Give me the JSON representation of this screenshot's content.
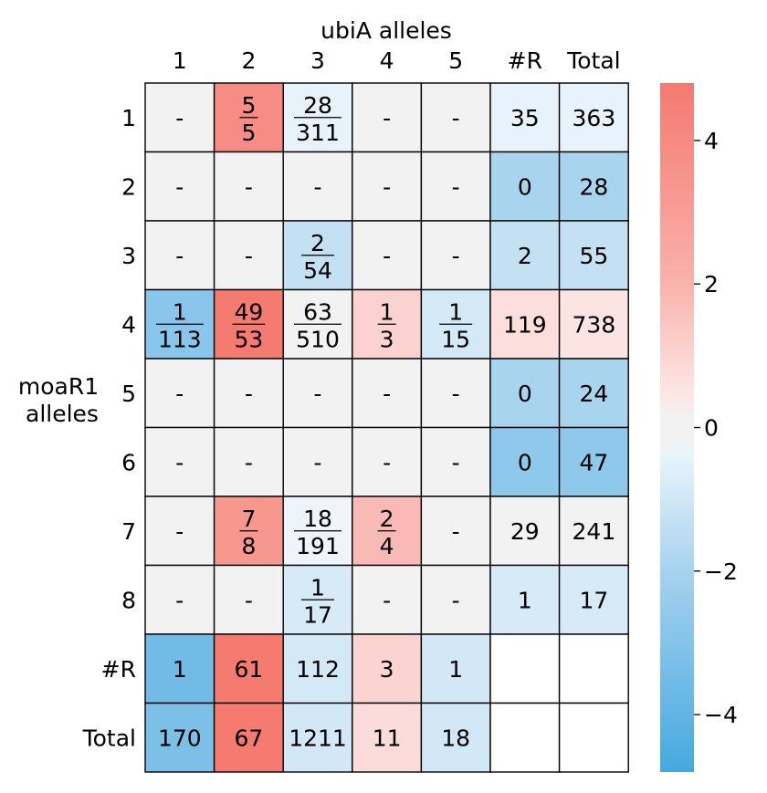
{
  "chart_data": {
    "type": "heatmap",
    "xlabel": "ubiA alleles",
    "ylabel": "moaR1\nalleles",
    "columns": [
      "1",
      "2",
      "3",
      "4",
      "5",
      "#R",
      "Total"
    ],
    "rows": [
      "1",
      "2",
      "3",
      "4",
      "5",
      "6",
      "7",
      "8",
      "#R",
      "Total"
    ],
    "cells": [
      [
        {
          "text": "-",
          "color": "#f2f2f2"
        },
        {
          "num": "5",
          "den": "5",
          "color": "#f68c83"
        },
        {
          "num": "28",
          "den": "311",
          "color": "#e7f2fa"
        },
        {
          "text": "-",
          "color": "#f2f2f2"
        },
        {
          "text": "-",
          "color": "#f2f2f2"
        },
        {
          "text": "35",
          "color": "#e7f2fa"
        },
        {
          "text": "363",
          "color": "#e7f2fa"
        }
      ],
      [
        {
          "text": "-",
          "color": "#f2f2f2"
        },
        {
          "text": "-",
          "color": "#f2f2f2"
        },
        {
          "text": "-",
          "color": "#f2f2f2"
        },
        {
          "text": "-",
          "color": "#f2f2f2"
        },
        {
          "text": "-",
          "color": "#f2f2f2"
        },
        {
          "text": "0",
          "color": "#a9d4ee"
        },
        {
          "text": "28",
          "color": "#a9d4ee"
        }
      ],
      [
        {
          "text": "-",
          "color": "#f2f2f2"
        },
        {
          "text": "-",
          "color": "#f2f2f2"
        },
        {
          "num": "2",
          "den": "54",
          "color": "#c3e1f3"
        },
        {
          "text": "-",
          "color": "#f2f2f2"
        },
        {
          "text": "-",
          "color": "#f2f2f2"
        },
        {
          "text": "2",
          "color": "#c3e1f3"
        },
        {
          "text": "55",
          "color": "#c3e1f3"
        }
      ],
      [
        {
          "num": "1",
          "den": "113",
          "color": "#8ac6eb"
        },
        {
          "num": "49",
          "den": "53",
          "color": "#f57a70"
        },
        {
          "num": "63",
          "den": "510",
          "color": "#f2f2f2"
        },
        {
          "num": "1",
          "den": "3",
          "color": "#fbd2cf"
        },
        {
          "num": "1",
          "den": "15",
          "color": "#d3e9f6"
        },
        {
          "text": "119",
          "color": "#fcdedc"
        },
        {
          "text": "738",
          "color": "#fce4e2"
        }
      ],
      [
        {
          "text": "-",
          "color": "#f2f2f2"
        },
        {
          "text": "-",
          "color": "#f2f2f2"
        },
        {
          "text": "-",
          "color": "#f2f2f2"
        },
        {
          "text": "-",
          "color": "#f2f2f2"
        },
        {
          "text": "-",
          "color": "#f2f2f2"
        },
        {
          "text": "0",
          "color": "#a9d4ee"
        },
        {
          "text": "24",
          "color": "#a9d4ee"
        }
      ],
      [
        {
          "text": "-",
          "color": "#f2f2f2"
        },
        {
          "text": "-",
          "color": "#f2f2f2"
        },
        {
          "text": "-",
          "color": "#f2f2f2"
        },
        {
          "text": "-",
          "color": "#f2f2f2"
        },
        {
          "text": "-",
          "color": "#f2f2f2"
        },
        {
          "text": "0",
          "color": "#8ec8eb"
        },
        {
          "text": "47",
          "color": "#8ec8eb"
        }
      ],
      [
        {
          "text": "-",
          "color": "#f2f2f2"
        },
        {
          "num": "7",
          "den": "8",
          "color": "#f7988f"
        },
        {
          "num": "18",
          "den": "191",
          "color": "#edf5fb"
        },
        {
          "num": "2",
          "den": "4",
          "color": "#f9bab5"
        },
        {
          "text": "-",
          "color": "#f2f2f2"
        },
        {
          "text": "29",
          "color": "#f2f2f2"
        },
        {
          "text": "241",
          "color": "#f2f2f2"
        }
      ],
      [
        {
          "text": "-",
          "color": "#f2f2f2"
        },
        {
          "text": "-",
          "color": "#f2f2f2"
        },
        {
          "num": "1",
          "den": "17",
          "color": "#d6eaf7"
        },
        {
          "text": "-",
          "color": "#f2f2f2"
        },
        {
          "text": "-",
          "color": "#f2f2f2"
        },
        {
          "text": "1",
          "color": "#d6eaf7"
        },
        {
          "text": "17",
          "color": "#d6eaf7"
        }
      ],
      [
        {
          "text": "1",
          "color": "#72bbe6"
        },
        {
          "text": "61",
          "color": "#f57b71"
        },
        {
          "text": "112",
          "color": "#d4e9f6"
        },
        {
          "text": "3",
          "color": "#fbd4d1"
        },
        {
          "text": "1",
          "color": "#d3e8f6"
        },
        {
          "text": "",
          "color": "#ffffff"
        },
        {
          "text": "",
          "color": "#ffffff"
        }
      ],
      [
        {
          "text": "170",
          "color": "#7cc0e8"
        },
        {
          "text": "67",
          "color": "#f57b71"
        },
        {
          "text": "1211",
          "color": "#d2e8f6"
        },
        {
          "text": "11",
          "color": "#fcdcda"
        },
        {
          "text": "18",
          "color": "#d3e8f6"
        },
        {
          "text": "",
          "color": "#ffffff"
        },
        {
          "text": "",
          "color": "#ffffff"
        }
      ]
    ],
    "colorbar": {
      "range": [
        -4.8,
        4.8
      ],
      "ticks": [
        4,
        2,
        0,
        -2,
        -4
      ],
      "tick_labels": [
        "4",
        "2",
        "0",
        "−2",
        "−4"
      ],
      "colors": {
        "max": "#f47a70",
        "upper_mid": "#f9b2ab",
        "near_zero_pos": "#fde9e8",
        "zero": "#f2f2f2",
        "near_zero_neg": "#e9f4fb",
        "lower_mid": "#a6d2ee",
        "min": "#45a9df"
      }
    }
  }
}
